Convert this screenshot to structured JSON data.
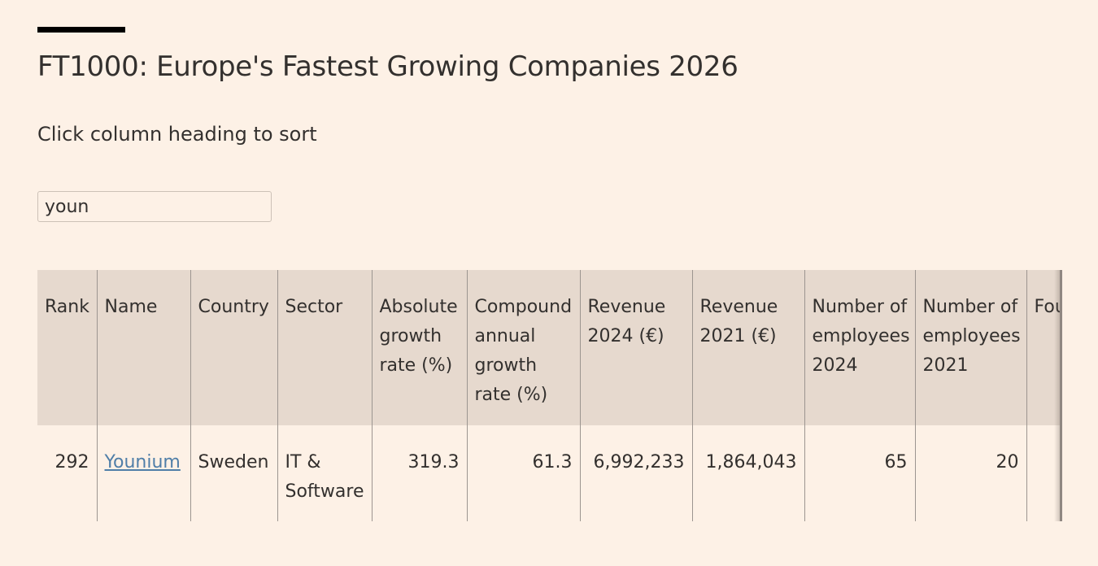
{
  "page": {
    "title": "FT1000: Europe's Fastest Growing Companies 2026",
    "instructions": "Click column heading to sort"
  },
  "search": {
    "value": "youn"
  },
  "table": {
    "columns": [
      "Rank",
      "Name",
      "Country",
      "Sector",
      "Absolute growth rate (%)",
      "Compound annual growth rate (%)",
      "Revenue 2024 (€)",
      "Revenue 2021 (€)",
      "Number of employees 2024",
      "Number of employees 2021",
      "Four years"
    ],
    "rows": [
      {
        "rank": "292",
        "name": "Younium",
        "country": "Sweden",
        "sector": "IT & Software",
        "absolute_growth": "319.3",
        "cagr": "61.3",
        "revenue_2024": "6,992,233",
        "revenue_2021": "1,864,043",
        "employees_2024": "65",
        "employees_2021": "20",
        "four_years": ""
      }
    ]
  }
}
